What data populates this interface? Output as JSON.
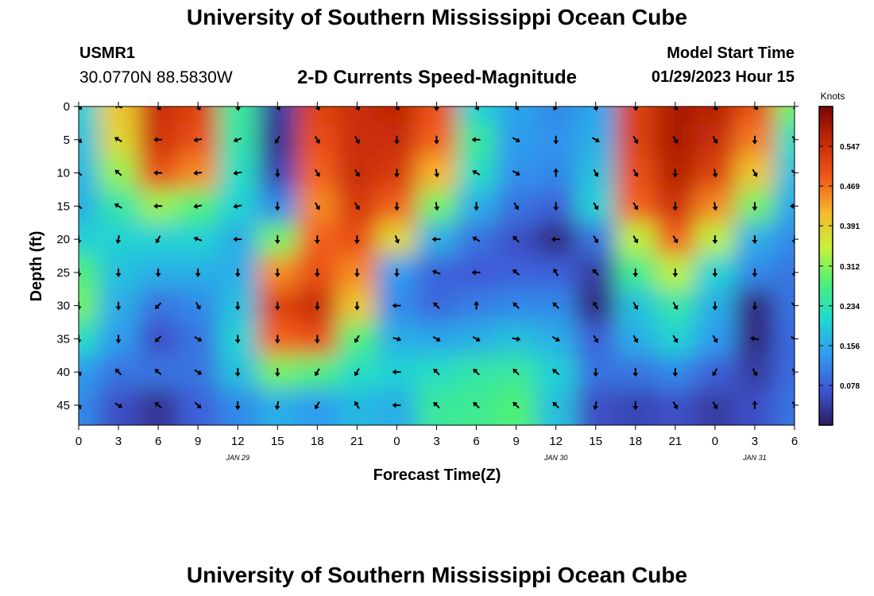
{
  "header": {
    "title": "University of Southern Mississippi Ocean Cube",
    "station": "USMR1",
    "coordinates": "30.0770N  88.5830W",
    "chart_title": "2-D Currents Speed-Magnitude",
    "model_start_label": "Model Start Time",
    "model_start_value": "01/29/2023 Hour 15"
  },
  "footer": {
    "title": "University of Southern Mississippi Ocean Cube"
  },
  "chart_data": {
    "type": "heatmap",
    "title": "2-D Currents Speed-Magnitude",
    "xlabel": "Forecast Time(Z)",
    "ylabel": "Depth (ft)",
    "x_ticks": [
      "0",
      "3",
      "6",
      "9",
      "12",
      "15",
      "18",
      "21",
      "0",
      "3",
      "6",
      "9",
      "12",
      "15",
      "18",
      "21",
      "0",
      "3",
      "6"
    ],
    "date_labels": [
      {
        "label": "JAN 29",
        "at_index": 4
      },
      {
        "label": "JAN 30",
        "at_index": 12
      },
      {
        "label": "JAN 31",
        "at_index": 17
      }
    ],
    "y_ticks": [
      0,
      5,
      10,
      15,
      20,
      25,
      30,
      35,
      40,
      45
    ],
    "ylim": [
      0,
      48
    ],
    "colorbar": {
      "label": "Knots",
      "ticks": [
        "0.547",
        "0.469",
        "0.391",
        "0.312",
        "0.234",
        "0.156",
        "0.078"
      ],
      "range": [
        0,
        0.625
      ],
      "colors": [
        "#2b1b5e",
        "#3f57d6",
        "#2f9bf0",
        "#1fdad0",
        "#4cf07a",
        "#c6f23a",
        "#f8b82c",
        "#f2581a",
        "#c52a06",
        "#7a0404"
      ]
    },
    "speed_grid": {
      "depths": [
        0,
        5,
        10,
        15,
        20,
        25,
        30,
        35,
        40,
        45
      ],
      "time_index": [
        0,
        1,
        2,
        3,
        4,
        5,
        6,
        7,
        8,
        9,
        10,
        11,
        12,
        13,
        14,
        15,
        16,
        17,
        18
      ],
      "values": [
        [
          0.2,
          0.4,
          0.55,
          0.52,
          0.25,
          0.04,
          0.52,
          0.55,
          0.56,
          0.5,
          0.2,
          0.15,
          0.12,
          0.15,
          0.52,
          0.58,
          0.57,
          0.5,
          0.3
        ],
        [
          0.18,
          0.38,
          0.54,
          0.5,
          0.24,
          0.03,
          0.5,
          0.55,
          0.55,
          0.48,
          0.25,
          0.14,
          0.13,
          0.16,
          0.52,
          0.58,
          0.55,
          0.46,
          0.22
        ],
        [
          0.17,
          0.32,
          0.5,
          0.45,
          0.22,
          0.05,
          0.48,
          0.55,
          0.53,
          0.42,
          0.22,
          0.13,
          0.12,
          0.18,
          0.5,
          0.57,
          0.52,
          0.4,
          0.18
        ],
        [
          0.16,
          0.24,
          0.32,
          0.28,
          0.2,
          0.12,
          0.45,
          0.53,
          0.48,
          0.3,
          0.16,
          0.1,
          0.08,
          0.2,
          0.48,
          0.54,
          0.45,
          0.3,
          0.15
        ],
        [
          0.2,
          0.2,
          0.2,
          0.2,
          0.16,
          0.3,
          0.48,
          0.5,
          0.38,
          0.16,
          0.1,
          0.06,
          0.02,
          0.1,
          0.34,
          0.48,
          0.34,
          0.16,
          0.12
        ],
        [
          0.28,
          0.18,
          0.16,
          0.16,
          0.16,
          0.45,
          0.5,
          0.45,
          0.14,
          0.08,
          0.07,
          0.08,
          0.08,
          0.04,
          0.26,
          0.34,
          0.2,
          0.12,
          0.1
        ],
        [
          0.3,
          0.16,
          0.1,
          0.12,
          0.18,
          0.52,
          0.55,
          0.4,
          0.12,
          0.09,
          0.11,
          0.12,
          0.12,
          0.02,
          0.18,
          0.24,
          0.16,
          0.02,
          0.1
        ],
        [
          0.22,
          0.14,
          0.06,
          0.1,
          0.2,
          0.48,
          0.5,
          0.28,
          0.16,
          0.15,
          0.16,
          0.18,
          0.16,
          0.08,
          0.16,
          0.2,
          0.14,
          0.02,
          0.09
        ],
        [
          0.14,
          0.1,
          0.1,
          0.1,
          0.18,
          0.3,
          0.28,
          0.22,
          0.2,
          0.22,
          0.24,
          0.25,
          0.2,
          0.1,
          0.1,
          0.12,
          0.08,
          0.04,
          0.09
        ],
        [
          0.12,
          0.06,
          0.03,
          0.08,
          0.12,
          0.16,
          0.14,
          0.17,
          0.16,
          0.25,
          0.26,
          0.28,
          0.18,
          0.06,
          0.05,
          0.06,
          0.04,
          0.06,
          0.1
        ]
      ]
    },
    "vector_angles_deg": {
      "note": "arrow direction in screen degrees (0 = right, 90 = down) at depths 0,5,...,45 and time indexes 0-18",
      "values": [
        [
          45,
          200,
          60,
          60,
          80,
          60,
          60,
          60,
          60,
          90,
          60,
          60,
          120,
          80,
          80,
          60,
          60,
          45,
          60
        ],
        [
          45,
          210,
          180,
          170,
          160,
          120,
          60,
          60,
          90,
          90,
          180,
          30,
          90,
          30,
          60,
          60,
          60,
          90,
          60
        ],
        [
          220,
          220,
          180,
          175,
          170,
          90,
          60,
          60,
          90,
          80,
          210,
          30,
          270,
          60,
          60,
          90,
          80,
          60,
          45
        ],
        [
          220,
          210,
          180,
          170,
          170,
          90,
          60,
          60,
          90,
          80,
          90,
          60,
          90,
          60,
          60,
          90,
          80,
          90,
          180
        ],
        [
          90,
          100,
          120,
          200,
          180,
          90,
          90,
          90,
          70,
          180,
          210,
          225,
          180,
          60,
          60,
          60,
          90,
          90,
          90
        ],
        [
          90,
          90,
          90,
          90,
          90,
          90,
          90,
          90,
          90,
          200,
          180,
          220,
          240,
          225,
          90,
          90,
          90,
          90,
          90
        ],
        [
          90,
          90,
          135,
          60,
          90,
          90,
          90,
          90,
          180,
          225,
          270,
          225,
          225,
          240,
          60,
          60,
          90,
          90,
          45
        ],
        [
          90,
          90,
          135,
          30,
          90,
          90,
          90,
          120,
          15,
          30,
          30,
          10,
          30,
          60,
          60,
          60,
          60,
          190,
          30
        ],
        [
          60,
          225,
          220,
          30,
          90,
          90,
          120,
          120,
          180,
          225,
          225,
          225,
          220,
          90,
          90,
          90,
          120,
          60,
          60
        ],
        [
          60,
          30,
          220,
          45,
          90,
          100,
          120,
          240,
          180,
          225,
          225,
          225,
          225,
          100,
          90,
          60,
          60,
          270,
          60
        ]
      ]
    }
  }
}
